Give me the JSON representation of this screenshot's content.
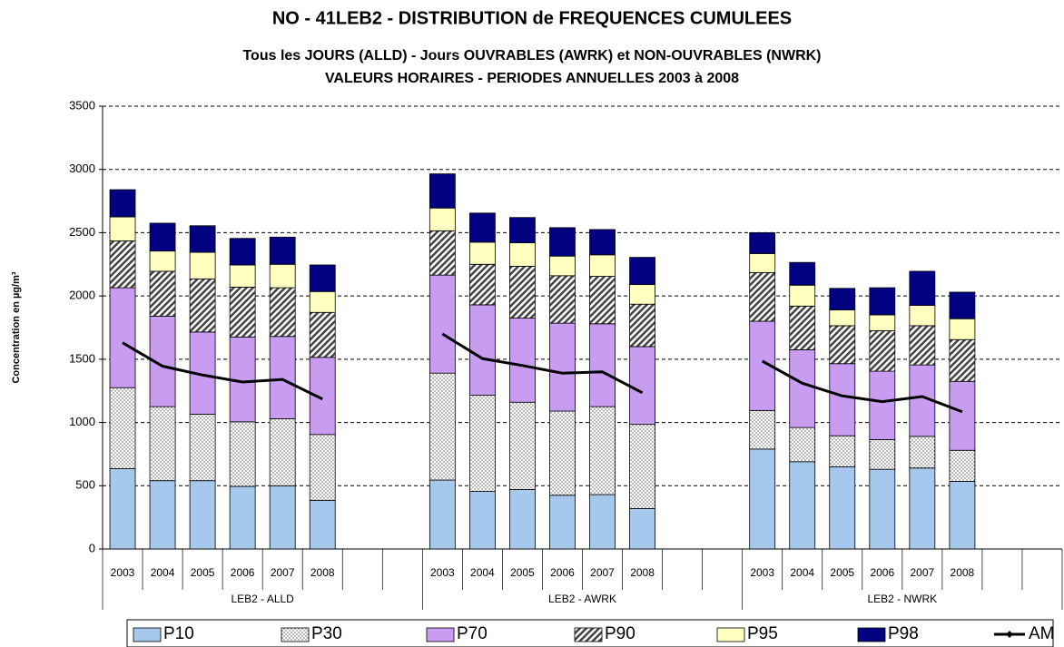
{
  "chart_data": {
    "type": "bar",
    "title": "NO - 41LEB2 - DISTRIBUTION de FREQUENCES CUMULEES",
    "subtitle": [
      "Tous les JOURS (ALLD)  -  Jours OUVRABLES (AWRK) et  NON-OUVRABLES (NWRK)",
      "VALEURS HORAIRES    -    PERIODES ANNUELLES 2003 à 2008"
    ],
    "y_label": "Concentration en µg/m³",
    "stacked": true,
    "grid": true,
    "groups": [
      "LEB2 - ALLD",
      "LEB2 - AWRK",
      "LEB2 - NWRK"
    ],
    "categories": [
      "2003",
      "2004",
      "2005",
      "2006",
      "2007",
      "2008",
      null,
      null,
      "2003",
      "2004",
      "2005",
      "2006",
      "2007",
      "2008",
      null,
      null,
      "2003",
      "2004",
      "2005",
      "2006",
      "2007",
      "2008",
      null,
      null
    ],
    "ylim": [
      0,
      3500
    ],
    "yticks": [
      0,
      500,
      1000,
      1500,
      2000,
      2500,
      3000,
      3500
    ],
    "series": [
      {
        "name": "P10",
        "color": "#a6c8ec",
        "values": [
          635,
          540,
          540,
          495,
          500,
          385,
          null,
          null,
          545,
          455,
          470,
          425,
          430,
          320,
          null,
          null,
          790,
          690,
          650,
          630,
          640,
          535,
          null,
          null
        ]
      },
      {
        "name": "P30",
        "color": "#ffffff",
        "pattern": "dots",
        "values": [
          640,
          585,
          525,
          510,
          530,
          520,
          null,
          null,
          845,
          760,
          690,
          665,
          695,
          665,
          null,
          null,
          305,
          270,
          245,
          235,
          250,
          245,
          null,
          null
        ]
      },
      {
        "name": "P70",
        "color": "#c89cf0",
        "values": [
          790,
          715,
          650,
          670,
          650,
          610,
          null,
          null,
          775,
          715,
          665,
          695,
          655,
          615,
          null,
          null,
          705,
          615,
          570,
          540,
          565,
          545,
          null,
          null
        ]
      },
      {
        "name": "P90",
        "color": "#a0a0a0",
        "pattern": "hatch",
        "values": [
          370,
          355,
          420,
          395,
          385,
          355,
          null,
          null,
          350,
          320,
          410,
          375,
          375,
          335,
          null,
          null,
          385,
          345,
          300,
          320,
          310,
          330,
          null,
          null
        ]
      },
      {
        "name": "P95",
        "color": "#ffffc0",
        "values": [
          190,
          160,
          210,
          175,
          185,
          165,
          null,
          null,
          180,
          175,
          185,
          155,
          170,
          155,
          null,
          null,
          150,
          165,
          125,
          125,
          160,
          165,
          null,
          null
        ]
      },
      {
        "name": "P98",
        "color": "#000080",
        "values": [
          215,
          220,
          210,
          210,
          215,
          210,
          null,
          null,
          270,
          230,
          200,
          225,
          200,
          215,
          null,
          null,
          165,
          180,
          170,
          215,
          270,
          210,
          null,
          null
        ]
      },
      {
        "name": "AM",
        "color": "#000000",
        "type": "line",
        "values": [
          1630,
          1445,
          1375,
          1320,
          1340,
          1185,
          null,
          null,
          1700,
          1505,
          1450,
          1390,
          1400,
          1235,
          null,
          null,
          1485,
          1310,
          1210,
          1165,
          1205,
          1085,
          null,
          null
        ]
      }
    ]
  }
}
